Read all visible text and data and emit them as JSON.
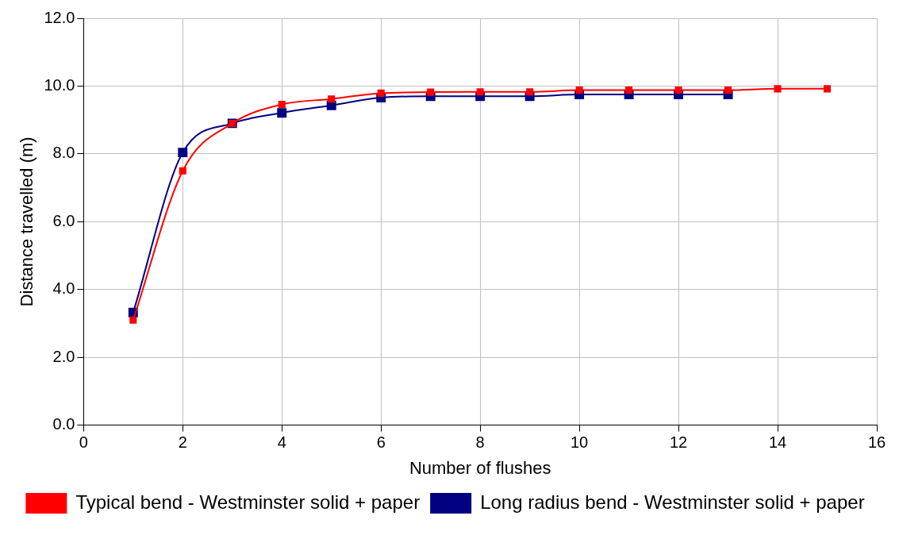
{
  "chart_data": {
    "type": "line",
    "xlabel": "Number of flushes",
    "ylabel": "Distance travelled (m)",
    "xlim": [
      0,
      16
    ],
    "xticks": [
      0,
      2,
      4,
      6,
      8,
      10,
      12,
      14,
      16
    ],
    "ylim": [
      0,
      12
    ],
    "yticks": [
      {
        "value": 0,
        "label": "0.0"
      },
      {
        "value": 2,
        "label": "2.0"
      },
      {
        "value": 4,
        "label": "4.0"
      },
      {
        "value": 6,
        "label": "6.0"
      },
      {
        "value": 8,
        "label": "8.0"
      },
      {
        "value": 10,
        "label": "10.0"
      },
      {
        "value": 12,
        "label": "12.0"
      }
    ],
    "grid": true,
    "legend": "bottom",
    "marker": "square",
    "line_style": "solid",
    "series": [
      {
        "name": "Typical bend - Westminster solid + paper",
        "color": "#ff0000",
        "x": [
          1,
          2,
          3,
          4,
          5,
          6,
          7,
          8,
          9,
          10,
          11,
          12,
          13,
          14,
          15
        ],
        "values": [
          3.1,
          7.5,
          8.9,
          9.46,
          9.62,
          9.79,
          9.82,
          9.83,
          9.83,
          9.88,
          9.88,
          9.88,
          9.88,
          9.92,
          9.92
        ]
      },
      {
        "name": "Long radius bend - Westminster solid + paper",
        "color": "#000080",
        "x": [
          1,
          2,
          3,
          4,
          5,
          6,
          7,
          8,
          9,
          10,
          11,
          12,
          13
        ],
        "values": [
          3.32,
          8.04,
          8.9,
          9.21,
          9.43,
          9.66,
          9.7,
          9.7,
          9.7,
          9.75,
          9.75,
          9.75,
          9.75
        ]
      }
    ]
  }
}
